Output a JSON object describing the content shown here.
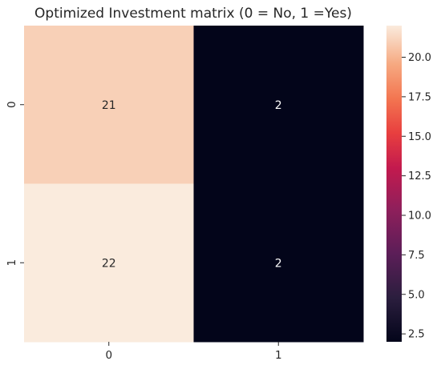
{
  "chart_data": {
    "type": "heatmap",
    "title": "Optimized Investment matrix (0 = No, 1 =Yes)",
    "x_labels": [
      "0",
      "1"
    ],
    "y_labels": [
      "0",
      "1"
    ],
    "values": [
      [
        21,
        2
      ],
      [
        22,
        2
      ]
    ],
    "xlabel": "",
    "ylabel": "",
    "colormap": "rocket",
    "vmin": 2,
    "vmax": 22,
    "colorbar_ticks": [
      2.5,
      5.0,
      7.5,
      10.0,
      12.5,
      15.0,
      17.5,
      20.0
    ],
    "colorbar_tick_labels": [
      "2.5",
      "5.0",
      "7.5",
      "10.0",
      "12.5",
      "15.0",
      "17.5",
      "20.0"
    ],
    "colors": {
      "low": "#03051a",
      "high": "#faebdd",
      "text_on_light": "#262626",
      "text_on_dark": "#ffffff"
    }
  }
}
